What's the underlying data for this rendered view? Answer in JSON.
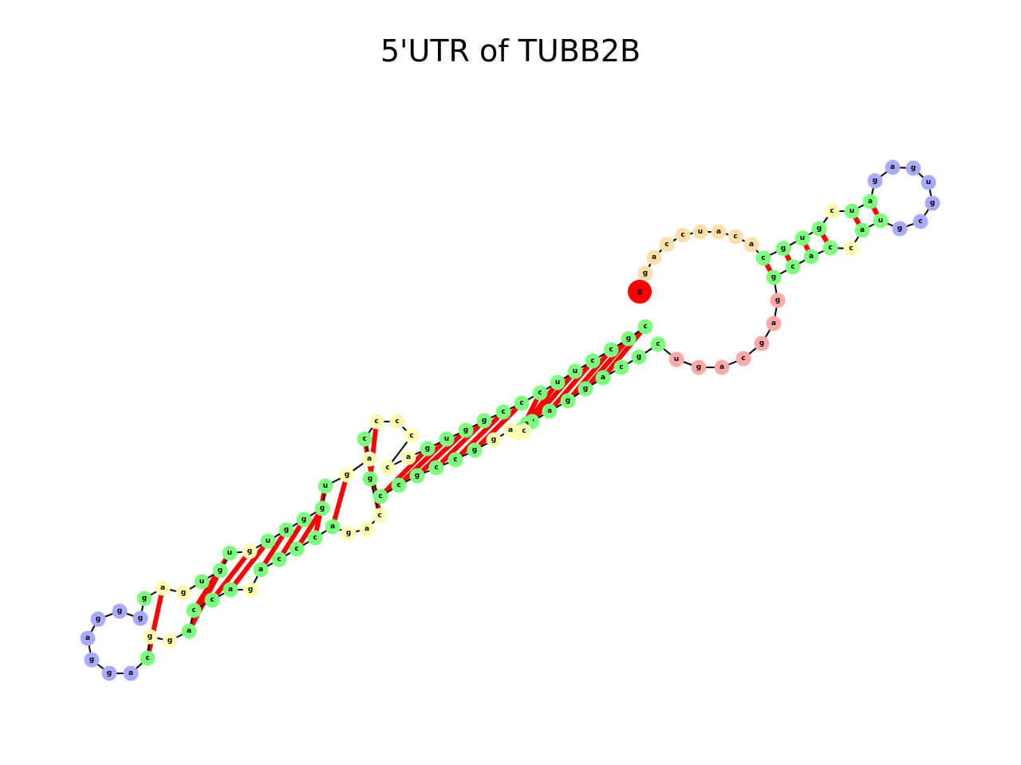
{
  "title": "5'UTR of TUBB2B",
  "colors": {
    "stem": "#7fff7f",
    "hairpin_loop": "#aaaaff",
    "interior_loop": "#ffffb3",
    "multiloop": "#ffaaaa",
    "five_prime_unpaired": "#ffe0a8",
    "five_prime_end": "#ff0000",
    "three_prime_end": "#008000",
    "backbone": "#000000",
    "base_pair": "#ff0000"
  },
  "nucleotides": [
    {
      "base": "g",
      "type": "five_prime_end"
    },
    {
      "base": "g",
      "type": "five_prime_unpaired"
    },
    {
      "base": "a",
      "type": "five_prime_unpaired"
    },
    {
      "base": "c",
      "type": "five_prime_unpaired"
    },
    {
      "base": "c",
      "type": "five_prime_unpaired"
    },
    {
      "base": "u",
      "type": "five_prime_unpaired"
    },
    {
      "base": "a",
      "type": "five_prime_unpaired"
    },
    {
      "base": "c",
      "type": "five_prime_unpaired"
    },
    {
      "base": "a",
      "type": "five_prime_unpaired"
    },
    {
      "base": "c",
      "type": "stem"
    },
    {
      "base": "g",
      "type": "stem"
    },
    {
      "base": "u",
      "type": "stem"
    },
    {
      "base": "g",
      "type": "stem"
    },
    {
      "base": "c",
      "type": "interior_loop"
    },
    {
      "base": "u",
      "type": "stem"
    },
    {
      "base": "a",
      "type": "stem"
    },
    {
      "base": "g",
      "type": "hairpin_loop"
    },
    {
      "base": "a",
      "type": "hairpin_loop"
    },
    {
      "base": "g",
      "type": "hairpin_loop"
    },
    {
      "base": "u",
      "type": "hairpin_loop"
    },
    {
      "base": "g",
      "type": "hairpin_loop"
    },
    {
      "base": "c",
      "type": "hairpin_loop"
    },
    {
      "base": "g",
      "type": "hairpin_loop"
    },
    {
      "base": "u",
      "type": "stem"
    },
    {
      "base": "a",
      "type": "stem"
    },
    {
      "base": "c",
      "type": "interior_loop"
    },
    {
      "base": "c",
      "type": "stem"
    },
    {
      "base": "a",
      "type": "stem"
    },
    {
      "base": "c",
      "type": "stem"
    },
    {
      "base": "g",
      "type": "stem"
    },
    {
      "base": "g",
      "type": "multiloop"
    },
    {
      "base": "a",
      "type": "multiloop"
    },
    {
      "base": "g",
      "type": "multiloop"
    },
    {
      "base": "c",
      "type": "multiloop"
    },
    {
      "base": "a",
      "type": "multiloop"
    },
    {
      "base": "g",
      "type": "multiloop"
    },
    {
      "base": "u",
      "type": "multiloop"
    },
    {
      "base": "c",
      "type": "stem"
    },
    {
      "base": "g",
      "type": "stem"
    },
    {
      "base": "c",
      "type": "stem"
    },
    {
      "base": "a",
      "type": "stem"
    },
    {
      "base": "g",
      "type": "stem"
    },
    {
      "base": "g",
      "type": "stem"
    },
    {
      "base": "a",
      "type": "stem"
    },
    {
      "base": "g",
      "type": "stem"
    },
    {
      "base": "a",
      "type": "stem"
    },
    {
      "base": "g",
      "type": "stem"
    },
    {
      "base": "c",
      "type": "interior_loop"
    },
    {
      "base": "c",
      "type": "interior_loop"
    },
    {
      "base": "a",
      "type": "interior_loop"
    },
    {
      "base": "g",
      "type": "interior_loop"
    },
    {
      "base": "g",
      "type": "stem"
    },
    {
      "base": "c",
      "type": "stem"
    },
    {
      "base": "c",
      "type": "stem"
    },
    {
      "base": "g",
      "type": "stem"
    },
    {
      "base": "c",
      "type": "stem"
    },
    {
      "base": "c",
      "type": "stem"
    },
    {
      "base": "g",
      "type": "stem"
    },
    {
      "base": "c",
      "type": "interior_loop"
    },
    {
      "base": "a",
      "type": "interior_loop"
    },
    {
      "base": "g",
      "type": "interior_loop"
    },
    {
      "base": "a",
      "type": "stem"
    },
    {
      "base": "c",
      "type": "stem"
    },
    {
      "base": "c",
      "type": "stem"
    },
    {
      "base": "c",
      "type": "stem"
    },
    {
      "base": "a",
      "type": "stem"
    },
    {
      "base": "g",
      "type": "interior_loop"
    },
    {
      "base": "a",
      "type": "stem"
    },
    {
      "base": "c",
      "type": "stem"
    },
    {
      "base": "c",
      "type": "stem"
    },
    {
      "base": "a",
      "type": "stem"
    },
    {
      "base": "g",
      "type": "interior_loop"
    },
    {
      "base": "g",
      "type": "interior_loop"
    },
    {
      "base": "c",
      "type": "stem"
    },
    {
      "base": "a",
      "type": "hairpin_loop"
    },
    {
      "base": "g",
      "type": "hairpin_loop"
    },
    {
      "base": "g",
      "type": "hairpin_loop"
    },
    {
      "base": "a",
      "type": "hairpin_loop"
    },
    {
      "base": "g",
      "type": "hairpin_loop"
    },
    {
      "base": "g",
      "type": "hairpin_loop"
    },
    {
      "base": "g",
      "type": "hairpin_loop"
    },
    {
      "base": "g",
      "type": "stem"
    },
    {
      "base": "a",
      "type": "interior_loop"
    },
    {
      "base": "g",
      "type": "interior_loop"
    },
    {
      "base": "u",
      "type": "stem"
    },
    {
      "base": "g",
      "type": "stem"
    },
    {
      "base": "u",
      "type": "stem"
    },
    {
      "base": "g",
      "type": "interior_loop"
    },
    {
      "base": "u",
      "type": "stem"
    },
    {
      "base": "g",
      "type": "stem"
    },
    {
      "base": "g",
      "type": "stem"
    },
    {
      "base": "g",
      "type": "stem"
    },
    {
      "base": "u",
      "type": "stem"
    },
    {
      "base": "g",
      "type": "interior_loop"
    },
    {
      "base": "a",
      "type": "interior_loop"
    },
    {
      "base": "c",
      "type": "stem"
    },
    {
      "base": "c",
      "type": "interior_loop"
    },
    {
      "base": "c",
      "type": "interior_loop"
    },
    {
      "base": "c",
      "type": "interior_loop"
    },
    {
      "base": "c",
      "type": "interior_loop"
    },
    {
      "base": "a",
      "type": "interior_loop"
    },
    {
      "base": "g",
      "type": "stem"
    },
    {
      "base": "u",
      "type": "stem"
    },
    {
      "base": "g",
      "type": "stem"
    },
    {
      "base": "g",
      "type": "stem"
    },
    {
      "base": "c",
      "type": "stem"
    },
    {
      "base": "c",
      "type": "stem"
    },
    {
      "base": "c",
      "type": "stem"
    },
    {
      "base": "u",
      "type": "stem"
    },
    {
      "base": "u",
      "type": "stem"
    },
    {
      "base": "c",
      "type": "stem"
    },
    {
      "base": "c",
      "type": "stem"
    },
    {
      "base": "g",
      "type": "stem"
    },
    {
      "base": "c",
      "type": "stem"
    },
    {
      "base": "g",
      "type": "three_prime_end"
    }
  ]
}
